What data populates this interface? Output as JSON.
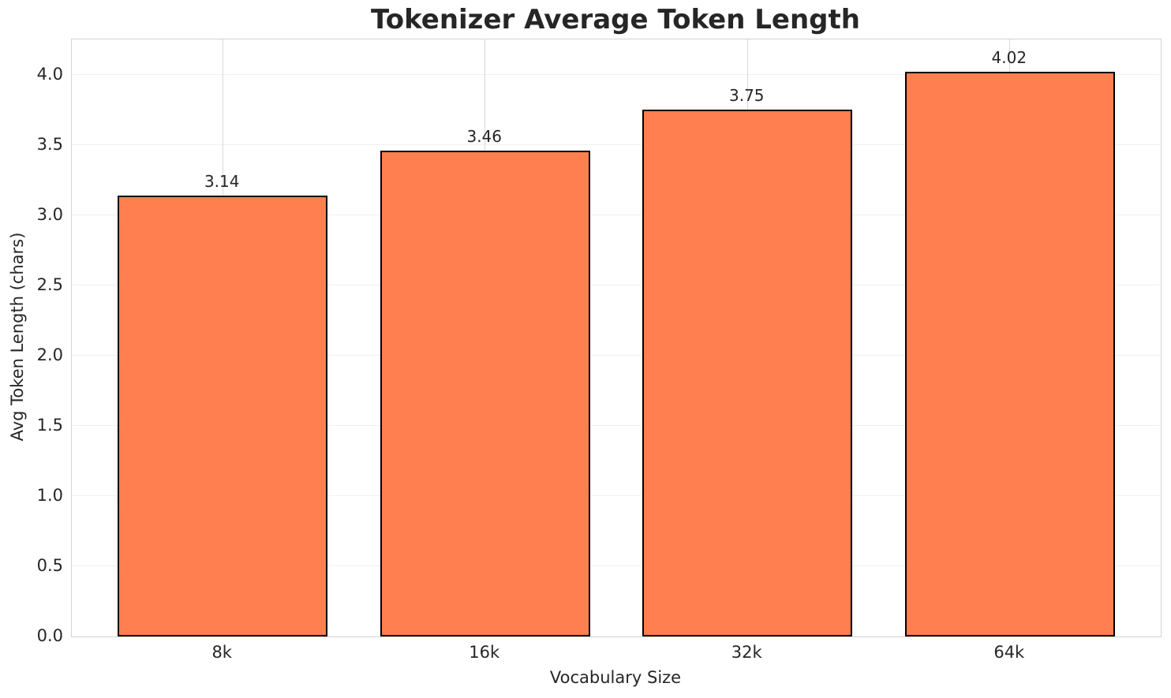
{
  "chart_data": {
    "type": "bar",
    "title": "Tokenizer Average Token Length",
    "xlabel": "Vocabulary Size",
    "ylabel": "Avg Token Length (chars)",
    "categories": [
      "8k",
      "16k",
      "32k",
      "64k"
    ],
    "values": [
      3.14,
      3.46,
      3.75,
      4.02
    ],
    "bar_labels": [
      "3.14",
      "3.46",
      "3.75",
      "4.02"
    ],
    "ytick_labels": [
      "0.0",
      "0.5",
      "1.0",
      "1.5",
      "2.0",
      "2.5",
      "3.0",
      "3.5",
      "4.0"
    ],
    "yticks": [
      0.0,
      0.5,
      1.0,
      1.5,
      2.0,
      2.5,
      3.0,
      3.5,
      4.0
    ],
    "ylim": [
      0,
      4.25
    ],
    "grid": true,
    "legend_position": "none",
    "colors": {
      "bar_fill": "#FF7F50",
      "bar_edge": "#000000",
      "text": "#262626",
      "grid_horizontal": "#f0f0f0",
      "grid_vertical": "#d9d9d9",
      "spine": "#d3d3d3",
      "background": "#ffffff"
    }
  }
}
